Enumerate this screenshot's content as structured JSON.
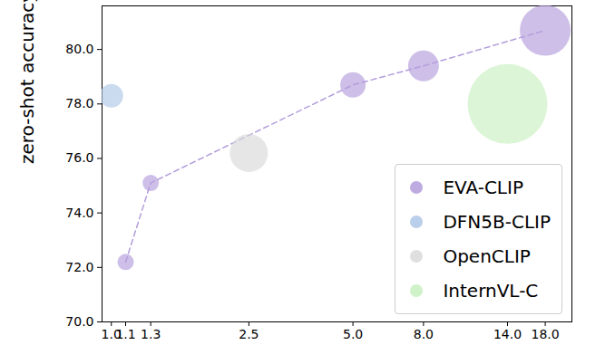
{
  "chart_data": {
    "type": "scatter",
    "y_label": "zero-shot accuracy (%)",
    "log": "x",
    "xlim": [
      0.94,
      21.5
    ],
    "xticks": [
      {
        "value": 1.0,
        "label": "1.0"
      },
      {
        "value": 1.1,
        "label": "1.1"
      },
      {
        "value": 1.3,
        "label": "1.3"
      },
      {
        "value": 2.5,
        "label": "2.5"
      },
      {
        "value": 5.0,
        "label": "5.0"
      },
      {
        "value": 8.0,
        "label": "8.0"
      },
      {
        "value": 14.0,
        "label": "14.0"
      },
      {
        "value": 18.0,
        "label": "18.0"
      }
    ],
    "ylim": [
      70,
      81.6
    ],
    "yticks": [
      {
        "value": 70,
        "label": "70.0"
      },
      {
        "value": 72,
        "label": "72.0"
      },
      {
        "value": 74,
        "label": "74.0"
      },
      {
        "value": 76,
        "label": "76.0"
      },
      {
        "value": 78,
        "label": "78.0"
      },
      {
        "value": 80,
        "label": "80.0"
      }
    ],
    "legend": "lower right",
    "series": [
      {
        "name": "EVA-CLIP",
        "color": "#b39ddb",
        "marker": "circle",
        "line_style": "dashed",
        "x": [
          1.1,
          1.3,
          5.0,
          8.0,
          18.0
        ],
        "values": [
          72.2,
          75.1,
          78.7,
          79.4,
          80.7
        ],
        "sizes": [
          81,
          81,
          196,
          289,
          784
        ]
      },
      {
        "name": "DFN5B-CLIP",
        "color": "#aec7e8",
        "marker": "circle",
        "x": [
          1.0
        ],
        "values": [
          78.3
        ],
        "sizes": [
          169
        ]
      },
      {
        "name": "OpenCLIP",
        "color": "#d9d9d9",
        "marker": "circle",
        "x": [
          2.5
        ],
        "values": [
          76.2
        ],
        "sizes": [
          441
        ]
      },
      {
        "name": "InternVL-C",
        "color": "#c7f0c0",
        "marker": "circle",
        "x": [
          14.0
        ],
        "values": [
          78.0
        ],
        "sizes": [
          1936
        ]
      }
    ]
  }
}
